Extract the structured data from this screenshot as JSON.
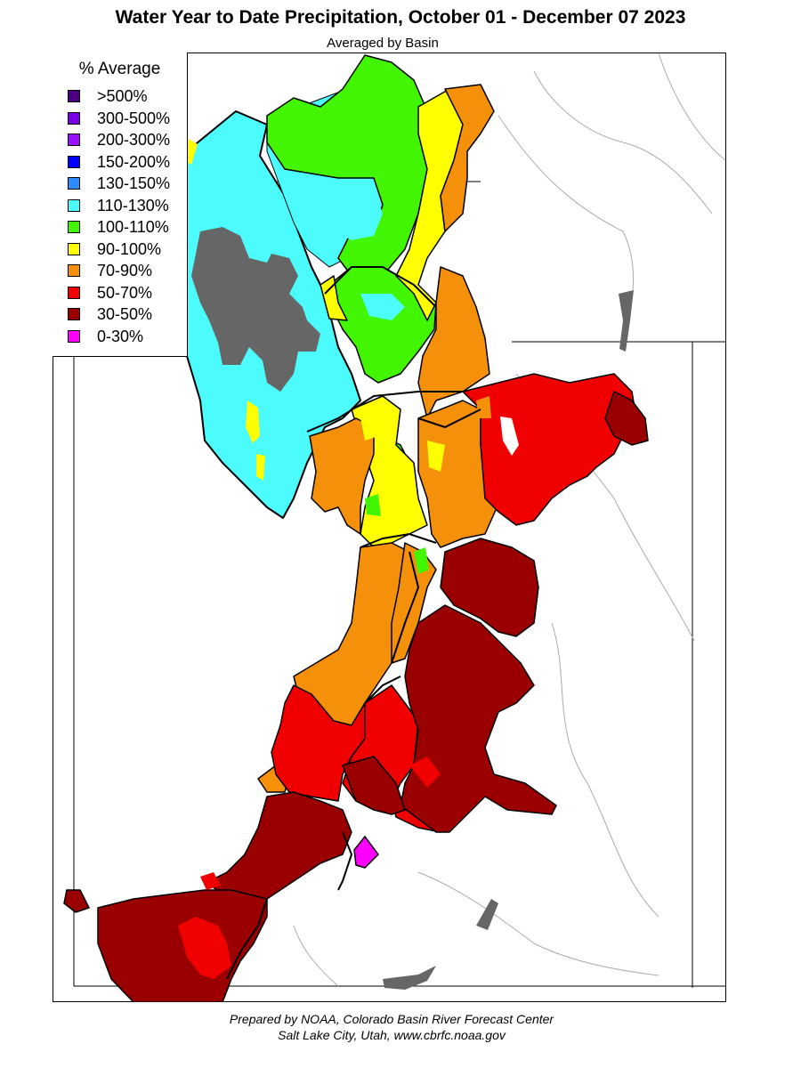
{
  "title": "Water Year to Date Precipitation, October 01  - December 07 2023",
  "subtitle": "Averaged by Basin",
  "legend": {
    "title": "% Average",
    "items": [
      {
        "label": ">500%",
        "color": "#4b0082"
      },
      {
        "label": "300-500%",
        "color": "#7a00e6"
      },
      {
        "label": "200-300%",
        "color": "#9b10ff"
      },
      {
        "label": "150-200%",
        "color": "#0000ff"
      },
      {
        "label": "130-150%",
        "color": "#2f8cff"
      },
      {
        "label": "110-130%",
        "color": "#4cfcfc"
      },
      {
        "label": "100-110%",
        "color": "#42f500"
      },
      {
        "label": "90-100%",
        "color": "#ffff00"
      },
      {
        "label": "70-90%",
        "color": "#f5900a"
      },
      {
        "label": "50-70%",
        "color": "#f00000"
      },
      {
        "label": "30-50%",
        "color": "#9a0000"
      },
      {
        "label": "0-30%",
        "color": "#ff00ff"
      }
    ]
  },
  "map": {
    "no_data_color": "#666666",
    "boundary_color": "#000000",
    "river_color": "#9a9a9a"
  },
  "footer": {
    "line1": "Prepared by NOAA, Colorado Basin River Forecast Center",
    "line2": "Salt Lake City, Utah, www.cbrfc.noaa.gov"
  }
}
